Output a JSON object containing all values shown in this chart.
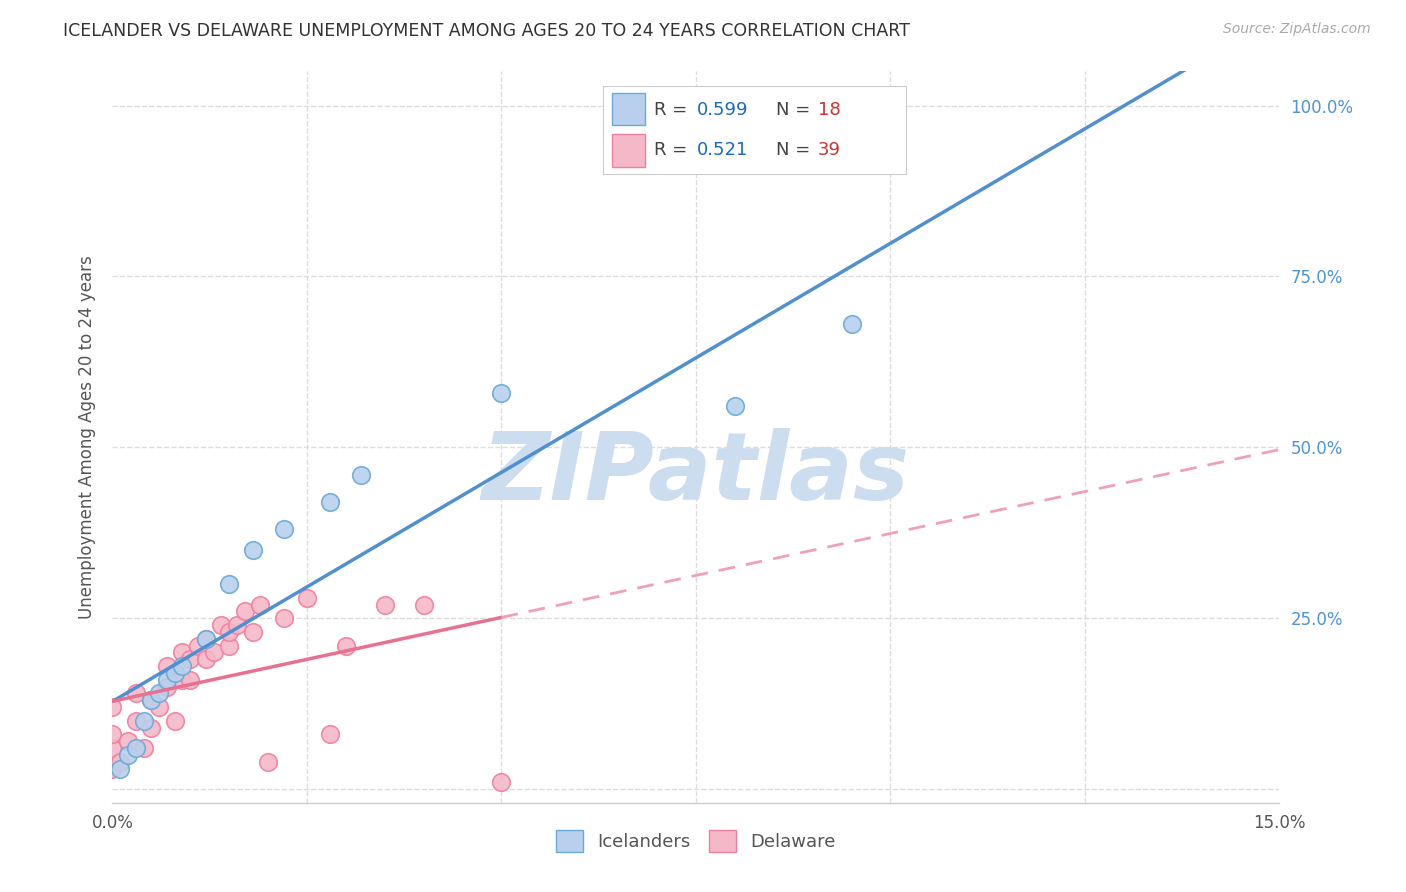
{
  "title": "ICELANDER VS DELAWARE UNEMPLOYMENT AMONG AGES 20 TO 24 YEARS CORRELATION CHART",
  "source": "Source: ZipAtlas.com",
  "ylabel": "Unemployment Among Ages 20 to 24 years",
  "xlim": [
    0.0,
    0.15
  ],
  "ylim": [
    -0.02,
    1.05
  ],
  "plot_ylim": [
    0.0,
    1.0
  ],
  "xticks": [
    0.0,
    0.025,
    0.05,
    0.075,
    0.1,
    0.125,
    0.15
  ],
  "xtick_labels": [
    "0.0%",
    "",
    "",
    "",
    "",
    "",
    "15.0%"
  ],
  "yticks_right": [
    0.0,
    0.25,
    0.5,
    0.75,
    1.0
  ],
  "ytick_labels_right": [
    "",
    "25.0%",
    "50.0%",
    "75.0%",
    "100.0%"
  ],
  "background_color": "#ffffff",
  "grid_color": "#dddddd",
  "iceland_color": "#b8d0ed",
  "delaware_color": "#f5b8c8",
  "iceland_edge_color": "#6aaad4",
  "delaware_edge_color": "#f080a0",
  "iceland_line_color": "#5090d0",
  "delaware_solid_color": "#e87090",
  "delaware_dash_color": "#f0a0b8",
  "iceland_R": "0.599",
  "iceland_N": "18",
  "delaware_R": "0.521",
  "delaware_N": "39",
  "legend_label_color": "#333333",
  "legend_val_color": "#1a6bbf",
  "legend_n_color": "#cc3333",
  "watermark": "ZIPatlas",
  "watermark_color": "#ccddf0",
  "iceland_x": [
    0.001,
    0.002,
    0.003,
    0.004,
    0.005,
    0.006,
    0.007,
    0.008,
    0.009,
    0.012,
    0.015,
    0.018,
    0.022,
    0.028,
    0.032,
    0.05,
    0.08,
    0.095
  ],
  "iceland_y": [
    0.03,
    0.05,
    0.06,
    0.1,
    0.13,
    0.14,
    0.16,
    0.17,
    0.18,
    0.22,
    0.3,
    0.35,
    0.38,
    0.42,
    0.46,
    0.58,
    0.56,
    0.68
  ],
  "delaware_x": [
    0.0,
    0.0,
    0.0,
    0.0,
    0.001,
    0.002,
    0.003,
    0.003,
    0.004,
    0.005,
    0.005,
    0.006,
    0.007,
    0.007,
    0.008,
    0.008,
    0.009,
    0.009,
    0.01,
    0.01,
    0.011,
    0.012,
    0.012,
    0.013,
    0.014,
    0.015,
    0.015,
    0.016,
    0.017,
    0.018,
    0.019,
    0.02,
    0.022,
    0.025,
    0.028,
    0.03,
    0.035,
    0.04,
    0.05
  ],
  "delaware_y": [
    0.03,
    0.06,
    0.08,
    0.12,
    0.04,
    0.07,
    0.1,
    0.14,
    0.06,
    0.09,
    0.13,
    0.12,
    0.15,
    0.18,
    0.1,
    0.17,
    0.16,
    0.2,
    0.16,
    0.19,
    0.21,
    0.19,
    0.22,
    0.2,
    0.24,
    0.21,
    0.23,
    0.24,
    0.26,
    0.23,
    0.27,
    0.04,
    0.25,
    0.28,
    0.08,
    0.21,
    0.27,
    0.27,
    0.01
  ]
}
